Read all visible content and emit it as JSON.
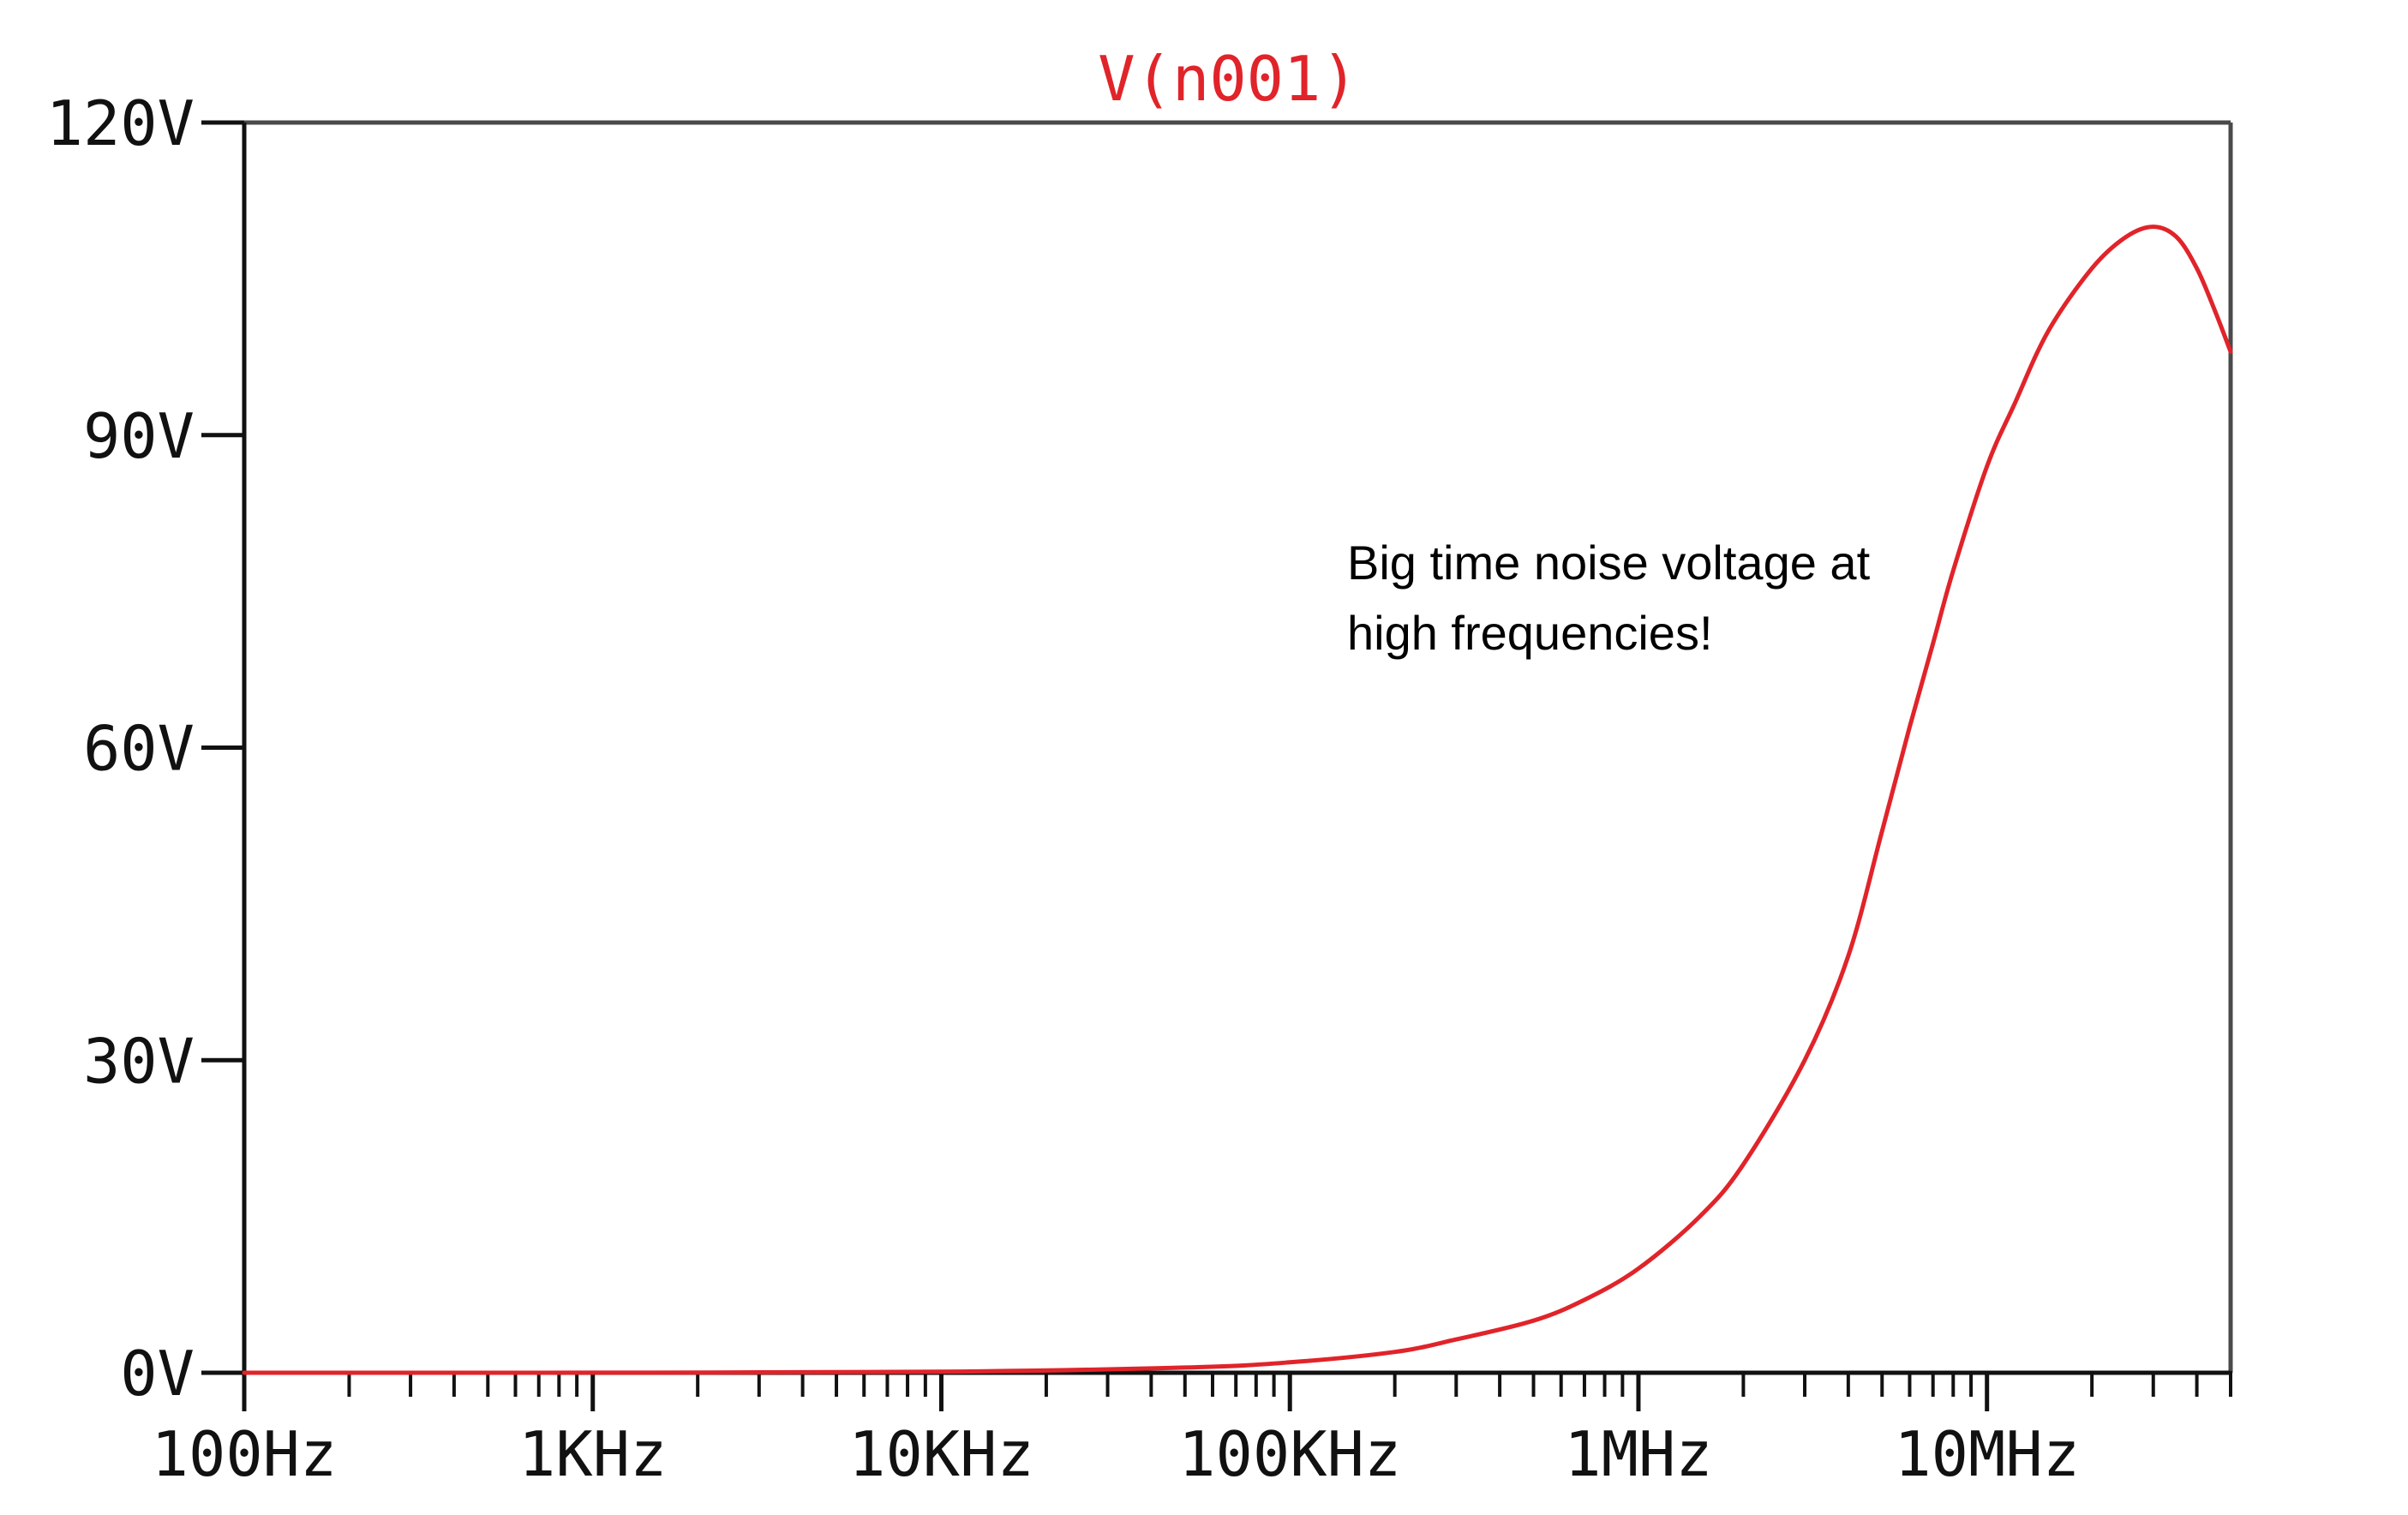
{
  "chart_data": {
    "type": "line",
    "title": "V(n001)",
    "xlabel": "",
    "ylabel": "",
    "x_scale": "log",
    "x_range_hz": [
      100,
      50000000
    ],
    "y_range_volts": [
      0,
      120
    ],
    "x_ticks": [
      {
        "value": 100,
        "label": "100Hz"
      },
      {
        "value": 1000,
        "label": "1KHz"
      },
      {
        "value": 10000,
        "label": "10KHz"
      },
      {
        "value": 100000,
        "label": "100KHz"
      },
      {
        "value": 1000000,
        "label": "1MHz"
      },
      {
        "value": 10000000,
        "label": "10MHz"
      }
    ],
    "y_ticks": [
      {
        "value": 0,
        "label": "0V"
      },
      {
        "value": 30,
        "label": "30V"
      },
      {
        "value": 60,
        "label": "60V"
      },
      {
        "value": 90,
        "label": "90V"
      },
      {
        "value": 120,
        "label": "120V"
      }
    ],
    "grid": false,
    "series": [
      {
        "name": "V(n001)",
        "color": "#e0242a",
        "points": [
          [
            100,
            0.0
          ],
          [
            1000,
            0.01
          ],
          [
            10000,
            0.1
          ],
          [
            50000,
            0.5
          ],
          [
            100000,
            1.0
          ],
          [
            200000,
            2.0
          ],
          [
            300000,
            3.2
          ],
          [
            500000,
            5.0
          ],
          [
            700000,
            7.0
          ],
          [
            1000000,
            10.0
          ],
          [
            1500000,
            15.0
          ],
          [
            2000000,
            20.0
          ],
          [
            3000000,
            30.0
          ],
          [
            4000000,
            40.0
          ],
          [
            5000000,
            52.0
          ],
          [
            6000000,
            62.0
          ],
          [
            7000000,
            70.0
          ],
          [
            8000000,
            77.0
          ],
          [
            10000000,
            87.0
          ],
          [
            12000000,
            93.0
          ],
          [
            15000000,
            100.0
          ],
          [
            20000000,
            106.0
          ],
          [
            25000000,
            109.0
          ],
          [
            30000000,
            110.0
          ],
          [
            35000000,
            109.0
          ],
          [
            40000000,
            106.0
          ],
          [
            45000000,
            102.0
          ],
          [
            50000000,
            98.0
          ]
        ]
      }
    ],
    "annotations": [
      {
        "lines": [
          "Big time noise voltage at",
          "high frequencies!"
        ]
      }
    ]
  }
}
